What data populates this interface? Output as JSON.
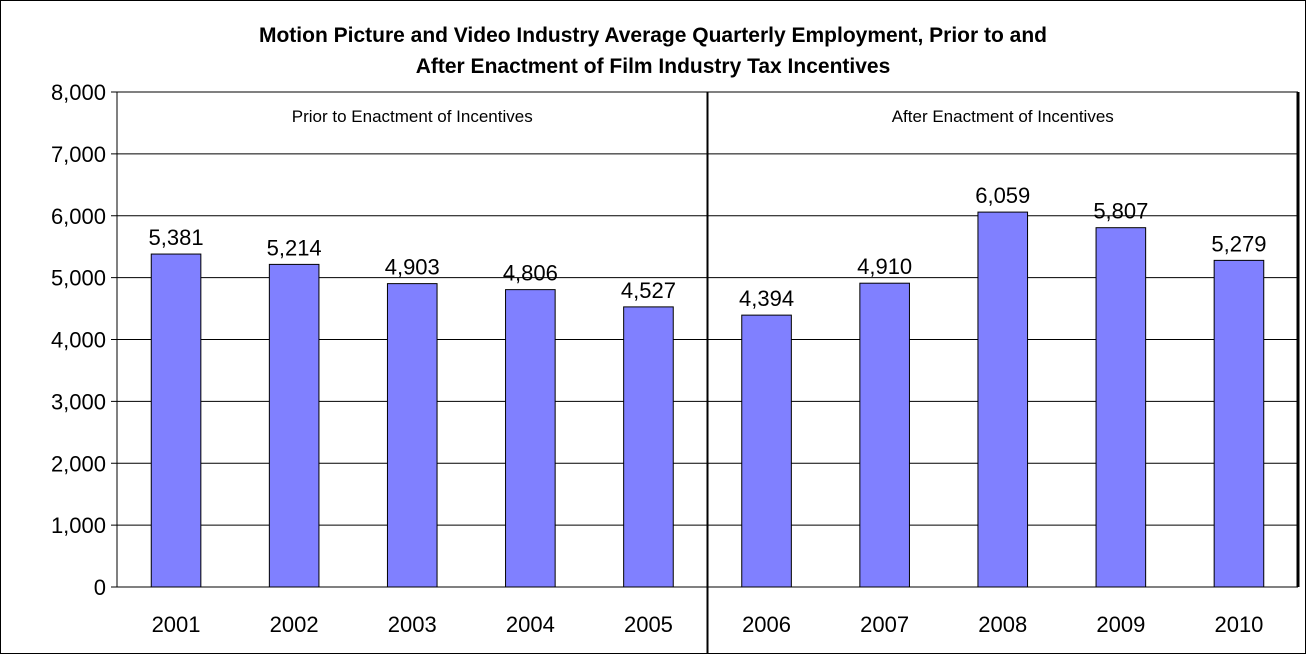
{
  "chart_data": {
    "type": "bar",
    "title_lines": [
      "Motion Picture and Video Industry Average Quarterly Employment, Prior to and",
      "After Enactment of Film Industry Tax Incentives"
    ],
    "categories": [
      "2001",
      "2002",
      "2003",
      "2004",
      "2005",
      "2006",
      "2007",
      "2008",
      "2009",
      "2010"
    ],
    "values": [
      5381,
      5214,
      4903,
      4806,
      4527,
      4394,
      4910,
      6059,
      5807,
      5279
    ],
    "value_labels": [
      "5,381",
      "5,214",
      "4,903",
      "4,806",
      "4,527",
      "4,394",
      "4,910",
      "6,059",
      "5,807",
      "5,279"
    ],
    "ylim": [
      0,
      8000
    ],
    "yticks": [
      0,
      1000,
      2000,
      3000,
      4000,
      5000,
      6000,
      7000,
      8000
    ],
    "ytick_labels": [
      "0",
      "1,000",
      "2,000",
      "3,000",
      "4,000",
      "5,000",
      "6,000",
      "7,000",
      "8,000"
    ],
    "xlabel": "",
    "ylabel": "",
    "grid": true,
    "legend": "none",
    "divider_between": [
      "2005",
      "2006"
    ],
    "annotations": [
      "Prior to Enactment of Incentives",
      "After Enactment of Incentives"
    ],
    "colors": {
      "bar_fill": "#8080ff",
      "bar_stroke": "#000000",
      "grid": "#000000",
      "text": "#000000",
      "background": "#ffffff"
    }
  }
}
